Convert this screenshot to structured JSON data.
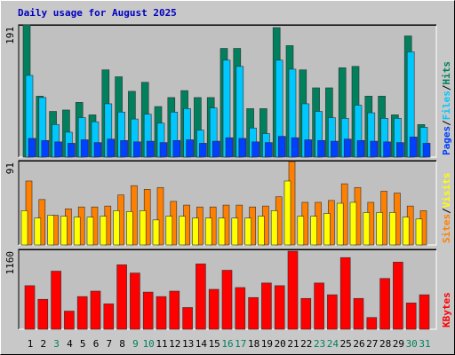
{
  "chart_data": [
    {
      "type": "bar",
      "title": "Daily usage for August 2025",
      "title_color": "#0000c0",
      "ylim": [
        0,
        191
      ],
      "yticks": [
        191
      ],
      "separator": "/",
      "series": [
        {
          "name": "Pages",
          "color": "#0040ff",
          "values": [
            27,
            24,
            22,
            20,
            25,
            21,
            26,
            24,
            22,
            23,
            21,
            24,
            25,
            20,
            23,
            28,
            27,
            22,
            21,
            30,
            28,
            25,
            24,
            23,
            26,
            24,
            23,
            22,
            21,
            29,
            20
          ]
        },
        {
          "name": "Files",
          "color": "#00c8ff",
          "values": [
            118,
            86,
            47,
            36,
            57,
            51,
            77,
            65,
            55,
            62,
            49,
            65,
            70,
            39,
            71,
            140,
            131,
            42,
            34,
            140,
            127,
            77,
            66,
            57,
            56,
            75,
            64,
            56,
            56,
            152,
            43
          ]
        },
        {
          "name": "Hits",
          "color": "#00805c",
          "values": [
            191,
            88,
            66,
            68,
            79,
            61,
            126,
            116,
            95,
            108,
            73,
            86,
            96,
            86,
            86,
            157,
            157,
            70,
            70,
            187,
            161,
            126,
            100,
            100,
            129,
            131,
            88,
            88,
            61,
            175,
            47
          ]
        }
      ]
    },
    {
      "type": "bar",
      "ylim": [
        0,
        91
      ],
      "yticks": [
        91
      ],
      "separator": "/",
      "series": [
        {
          "name": "Sites",
          "color": "#ff8000",
          "values": [
            69,
            49,
            32,
            39,
            41,
            41,
            42,
            54,
            64,
            60,
            62,
            47,
            43,
            41,
            41,
            43,
            43,
            41,
            42,
            52,
            90,
            46,
            46,
            48,
            66,
            62,
            46,
            58,
            56,
            42,
            37
          ]
        },
        {
          "name": "Visits",
          "color": "#ffff00",
          "values": [
            37,
            29,
            32,
            31,
            30,
            30,
            31,
            37,
            36,
            37,
            27,
            31,
            31,
            29,
            29,
            29,
            29,
            29,
            31,
            37,
            69,
            31,
            31,
            34,
            45,
            46,
            35,
            35,
            35,
            30,
            28
          ]
        }
      ]
    },
    {
      "type": "bar",
      "ylim": [
        0,
        1160
      ],
      "yticks": [
        1160
      ],
      "series": [
        {
          "name": "KBytes",
          "color": "#ff0000",
          "values": [
            633,
            435,
            844,
            264,
            475,
            554,
            369,
            936,
            817,
            540,
            475,
            554,
            316,
            949,
            580,
            857,
            606,
            461,
            672,
            633,
            1134,
            448,
            672,
            501,
            1041,
            448,
            171,
            738,
            975,
            382,
            501
          ]
        }
      ],
      "categories": [
        "1",
        "2",
        "3",
        "4",
        "5",
        "6",
        "7",
        "8",
        "9",
        "10",
        "11",
        "12",
        "13",
        "14",
        "15",
        "16",
        "17",
        "18",
        "19",
        "20",
        "21",
        "22",
        "23",
        "24",
        "25",
        "26",
        "27",
        "28",
        "29",
        "30",
        "31"
      ],
      "weekend_days": [
        3,
        9,
        10,
        16,
        17,
        23,
        24,
        30,
        31
      ],
      "weekend_color": "#00805c"
    }
  ]
}
